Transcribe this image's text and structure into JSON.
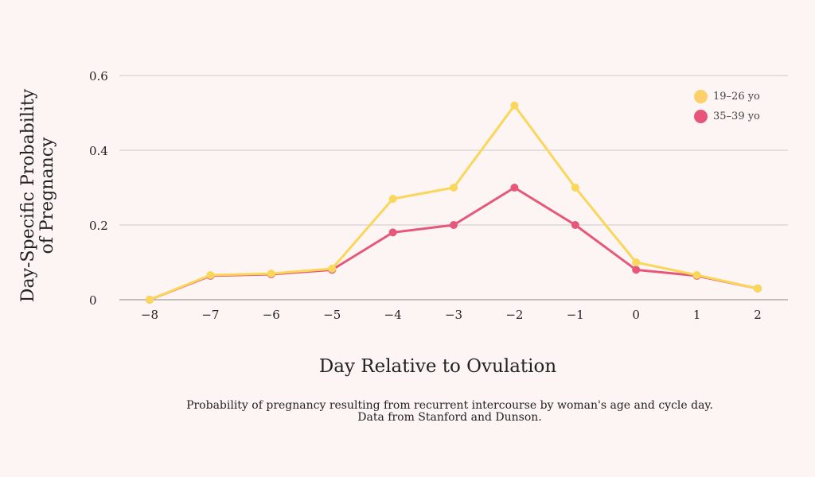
{
  "chart_data": {
    "type": "line",
    "xlabel": "Day Relative to Ovulation",
    "ylabel_lines": [
      "Day-Specific Probability",
      "of Pregnancy"
    ],
    "x": [
      -8,
      -7,
      -6,
      -5,
      -4,
      -3,
      -2,
      -1,
      0,
      1,
      2
    ],
    "x_tick_labels": [
      "−8",
      "−7",
      "−6",
      "−5",
      "−4",
      "−3",
      "−2",
      "−1",
      "0",
      "1",
      "2"
    ],
    "y_ticks": [
      0,
      0.2,
      0.4,
      0.6
    ],
    "y_tick_labels": [
      "0",
      "0.2",
      "0.4",
      "0.6"
    ],
    "ylim": [
      0,
      0.6
    ],
    "grid": "horizontal",
    "legend_position": "top-right",
    "series": [
      {
        "name": "19–26 yo",
        "color": "#fad65a",
        "legend_color": "#fdd06a",
        "values": [
          0,
          0.066,
          0.07,
          0.083,
          0.27,
          0.3,
          0.52,
          0.3,
          0.1,
          0.066,
          0.03
        ]
      },
      {
        "name": "35–39 yo",
        "color": "#e6587a",
        "legend_color": "#e8557a",
        "values": [
          0,
          0.064,
          0.068,
          0.08,
          0.18,
          0.2,
          0.3,
          0.2,
          0.08,
          0.064,
          0.03
        ]
      }
    ],
    "caption_lines": [
      "Probability of pregnancy resulting from recurrent intercourse by woman's age and cycle day.",
      "Data from Stanford and Dunson."
    ]
  }
}
